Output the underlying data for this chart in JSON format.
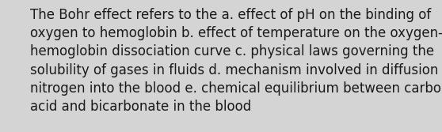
{
  "lines": [
    "The Bohr effect refers to the a. effect of pH on the binding of",
    "oxygen to hemoglobin b. effect of temperature on the oxygen-",
    "hemoglobin dissociation curve c. physical laws governing the",
    "solubility of gases in fluids d. mechanism involved in diffusion of",
    "nitrogen into the blood e. chemical equilibrium between carbonic",
    "acid and bicarbonate in the blood"
  ],
  "background_color": "#d4d4d4",
  "text_color": "#1a1a1a",
  "font_size": 12.0,
  "fig_width": 5.58,
  "fig_height": 1.67,
  "dpi": 100
}
